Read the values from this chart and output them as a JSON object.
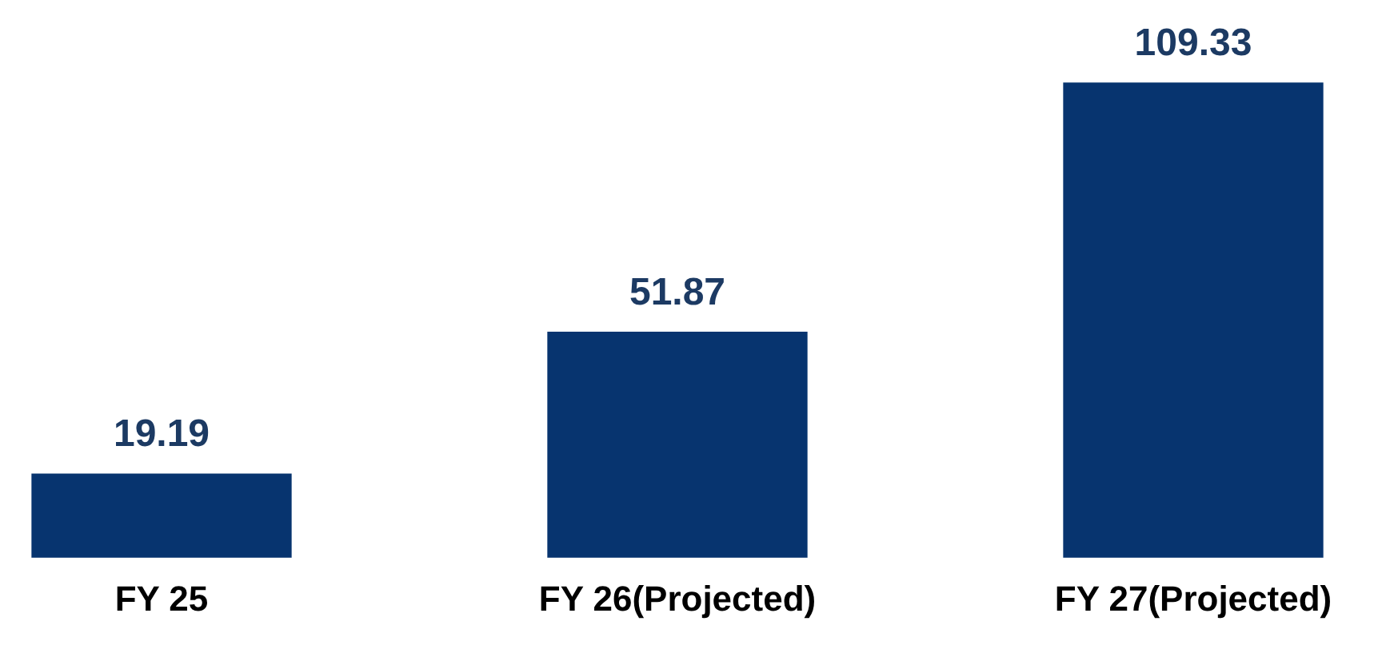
{
  "chart_data": {
    "type": "bar",
    "categories": [
      "FY 25",
      "FY 26(Projected)",
      "FY 27(Projected)"
    ],
    "values": [
      19.19,
      51.87,
      109.33
    ],
    "color": "#07346f",
    "data_labels": true,
    "grid": false,
    "legend": false,
    "tick_labels": "x"
  }
}
